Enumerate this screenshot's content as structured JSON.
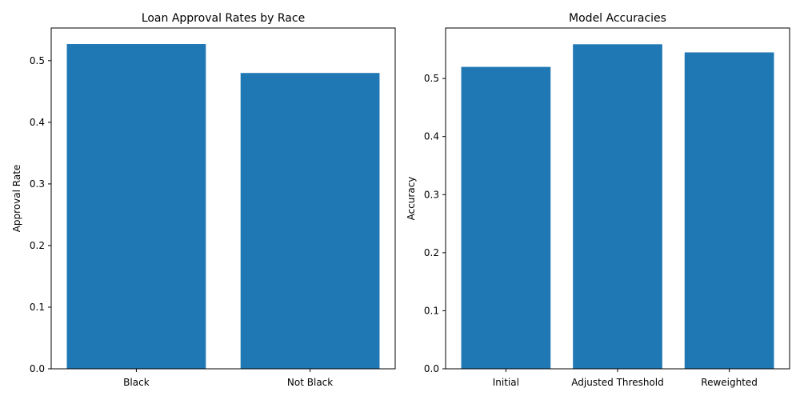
{
  "chart_data": [
    {
      "type": "bar",
      "title": "Loan Approval Rates by Race",
      "xlabel": "",
      "ylabel": "Approval Rate",
      "categories": [
        "Black",
        "Not Black"
      ],
      "values": [
        0.527,
        0.48
      ],
      "ylim": [
        0,
        0.553
      ],
      "yticks": [
        0.0,
        0.1,
        0.2,
        0.3,
        0.4,
        0.5
      ],
      "grid": false,
      "color": "#1f77b4"
    },
    {
      "type": "bar",
      "title": "Model Accuracies",
      "xlabel": "",
      "ylabel": "Accuracy",
      "categories": [
        "Initial",
        "Adjusted Threshold",
        "Reweighted"
      ],
      "values": [
        0.52,
        0.559,
        0.545
      ],
      "ylim": [
        0,
        0.587
      ],
      "yticks": [
        0.0,
        0.1,
        0.2,
        0.3,
        0.4,
        0.5
      ],
      "grid": false,
      "color": "#1f77b4"
    }
  ]
}
